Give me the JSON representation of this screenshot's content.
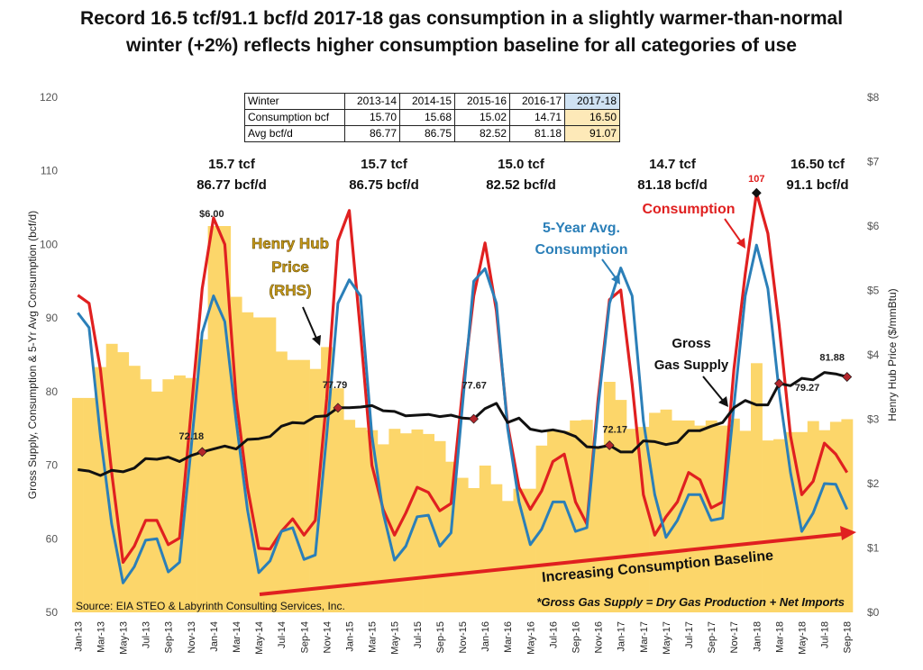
{
  "title_lines": [
    "Record 16.5 tcf/91.1 bcf/d 2017-18 gas consumption in a slightly warmer-than-normal",
    "winter (+2%) reflects higher consumption baseline for all categories of use"
  ],
  "table": {
    "header": [
      "Winter",
      "2013-14",
      "2014-15",
      "2015-16",
      "2016-17",
      "2017-18"
    ],
    "rows": [
      [
        "Consumption bcf",
        "15.70",
        "15.68",
        "15.02",
        "14.71",
        "16.50"
      ],
      [
        "Avg bcf/d",
        "86.77",
        "86.75",
        "82.52",
        "81.18",
        "91.07"
      ]
    ]
  },
  "chart_data": {
    "type": "line",
    "title": "Record 16.5 tcf/91.1 bcf/d 2017-18 gas consumption in a slightly warmer-than-normal winter (+2%) reflects higher consumption baseline for all categories of use",
    "x": [
      "Jan-13",
      "Feb-13",
      "Mar-13",
      "Apr-13",
      "May-13",
      "Jun-13",
      "Jul-13",
      "Aug-13",
      "Sep-13",
      "Oct-13",
      "Nov-13",
      "Dec-13",
      "Jan-14",
      "Feb-14",
      "Mar-14",
      "Apr-14",
      "May-14",
      "Jun-14",
      "Jul-14",
      "Aug-14",
      "Sep-14",
      "Oct-14",
      "Nov-14",
      "Dec-14",
      "Jan-15",
      "Feb-15",
      "Mar-15",
      "Apr-15",
      "May-15",
      "Jun-15",
      "Jul-15",
      "Aug-15",
      "Sep-15",
      "Oct-15",
      "Nov-15",
      "Dec-15",
      "Jan-16",
      "Feb-16",
      "Mar-16",
      "Apr-16",
      "May-16",
      "Jun-16",
      "Jul-16",
      "Aug-16",
      "Sep-16",
      "Oct-16",
      "Nov-16",
      "Dec-16",
      "Jan-17",
      "Feb-17",
      "Mar-17",
      "Apr-17",
      "May-17",
      "Jun-17",
      "Jul-17",
      "Aug-17",
      "Sep-17",
      "Oct-17",
      "Nov-17",
      "Dec-17",
      "Jan-18",
      "Feb-18",
      "Mar-18",
      "Apr-18",
      "May-18",
      "Jun-18",
      "Jul-18",
      "Aug-18",
      "Sep-18"
    ],
    "tick_labels": [
      "Jan-13",
      "Mar-13",
      "May-13",
      "Jul-13",
      "Sep-13",
      "Nov-13",
      "Jan-14",
      "Mar-14",
      "May-14",
      "Jul-14",
      "Sep-14",
      "Nov-14",
      "Jan-15",
      "Mar-15",
      "May-15",
      "Jul-15",
      "Sep-15",
      "Nov-15",
      "Jan-16",
      "Mar-16",
      "May-16",
      "Jul-16",
      "Sep-16",
      "Nov-16",
      "Jan-17",
      "Mar-17",
      "May-17",
      "Jul-17",
      "Sep-17",
      "Nov-17",
      "Jan-18",
      "Mar-18",
      "May-18",
      "Jul-18",
      "Sep-18"
    ],
    "ylabel": "Gross Supply, Consumption & 5-Yr Avg Consumption (bcf/d)",
    "ylabel_right": "Henry Hub Price ($/mmBtu)",
    "ylim": [
      50,
      120
    ],
    "ylim_right": [
      0,
      8
    ],
    "yticks": [
      "50",
      "60",
      "70",
      "80",
      "90",
      "100",
      "110",
      "120"
    ],
    "yticks_right": [
      "$0",
      "$1",
      "$2",
      "$3",
      "$4",
      "$5",
      "$6",
      "$7",
      "$8"
    ],
    "grid": false,
    "series": [
      {
        "name": "Henry Hub Price (RHS)",
        "kind": "bar",
        "axis": "right",
        "color": "#fcd66a",
        "values": [
          3.33,
          3.33,
          3.81,
          4.17,
          4.04,
          3.83,
          3.62,
          3.43,
          3.62,
          3.68,
          3.64,
          4.24,
          6.0,
          6.0,
          4.9,
          4.66,
          4.58,
          4.58,
          4.05,
          3.92,
          3.92,
          3.78,
          4.12,
          3.48,
          2.99,
          2.87,
          2.83,
          2.61,
          2.85,
          2.78,
          2.84,
          2.77,
          2.66,
          2.34,
          2.09,
          1.93,
          2.28,
          1.99,
          1.73,
          1.92,
          1.92,
          2.59,
          2.82,
          2.82,
          2.98,
          2.99,
          2.55,
          3.58,
          3.3,
          2.85,
          2.88,
          3.1,
          3.15,
          2.98,
          2.98,
          2.9,
          2.98,
          2.9,
          3.01,
          2.82,
          3.87,
          2.67,
          2.69,
          2.8,
          2.8,
          2.97,
          2.83,
          2.96,
          3.0
        ]
      },
      {
        "name": "Consumption",
        "kind": "line",
        "axis": "left",
        "color": "#e02020",
        "values": [
          93.1,
          92.0,
          83.0,
          69.0,
          56.8,
          59.0,
          62.5,
          62.5,
          59.2,
          60.1,
          77.0,
          94.0,
          103.6,
          100.0,
          79.0,
          67.0,
          58.7,
          58.6,
          61.0,
          62.7,
          60.5,
          62.5,
          79.0,
          100.5,
          104.6,
          88.0,
          70.0,
          64.0,
          60.5,
          63.5,
          67.0,
          66.3,
          63.8,
          64.8,
          80.0,
          93.0,
          100.2,
          91.0,
          75.5,
          67.0,
          64.0,
          66.5,
          70.5,
          71.5,
          65.0,
          62.0,
          79.0,
          92.5,
          93.8,
          81.0,
          66.0,
          60.5,
          63.0,
          65.0,
          69.0,
          68.0,
          64.2,
          65.0,
          83.0,
          96.0,
          107.0,
          101.5,
          89.0,
          74.0,
          66.0,
          67.8,
          73.0,
          71.5,
          69.0
        ]
      },
      {
        "name": "5-Year Avg. Consumption",
        "kind": "line",
        "axis": "left",
        "color": "#2b7fb8",
        "values": [
          90.7,
          88.7,
          74.0,
          62.0,
          54.0,
          56.2,
          59.8,
          60.0,
          55.5,
          56.8,
          72.0,
          88.0,
          93.0,
          89.5,
          76.0,
          64.0,
          55.4,
          57.0,
          61.0,
          61.5,
          57.2,
          57.8,
          74.0,
          92.0,
          95.2,
          93.0,
          74.0,
          63.5,
          57.1,
          59.0,
          63.0,
          63.2,
          59.0,
          60.8,
          78.0,
          95.0,
          96.7,
          92.0,
          75.0,
          65.0,
          59.2,
          61.3,
          65.0,
          65.0,
          61.0,
          61.5,
          78.0,
          92.0,
          96.8,
          93.0,
          76.0,
          66.0,
          60.2,
          62.5,
          66.0,
          66.0,
          62.5,
          62.8,
          78.0,
          93.0,
          99.9,
          94.0,
          80.0,
          69.0,
          61.0,
          63.5,
          67.5,
          67.4,
          64.0
        ]
      },
      {
        "name": "Gross Gas Supply",
        "kind": "line",
        "axis": "left",
        "color": "#111111",
        "values": [
          69.4,
          69.2,
          68.6,
          69.3,
          69.1,
          69.6,
          70.9,
          70.8,
          71.1,
          70.5,
          71.3,
          71.8,
          72.2,
          72.6,
          72.2,
          73.5,
          73.6,
          73.9,
          75.3,
          75.8,
          75.7,
          76.6,
          76.7,
          77.8,
          77.8,
          77.9,
          78.1,
          77.4,
          77.3,
          76.7,
          76.8,
          76.9,
          76.6,
          76.8,
          76.4,
          76.3,
          77.7,
          78.4,
          75.8,
          76.4,
          74.9,
          74.6,
          74.8,
          74.5,
          73.9,
          72.5,
          72.4,
          72.7,
          71.8,
          71.8,
          73.3,
          73.2,
          72.8,
          73.1,
          74.7,
          74.7,
          75.3,
          75.8,
          77.8,
          78.8,
          78.2,
          78.2,
          81.1,
          80.8,
          81.8,
          81.6,
          82.6,
          82.4,
          82.0
        ]
      }
    ],
    "point_labels": [
      "$6.00",
      "72.18",
      "77.79",
      "77.67",
      "72.17",
      "79.27",
      "81.88",
      "107"
    ],
    "annotations": {
      "winters": [
        {
          "tcf": "15.7 tcf",
          "bcfd": "86.77 bcf/d"
        },
        {
          "tcf": "15.7 tcf",
          "bcfd": "86.75 bcf/d"
        },
        {
          "tcf": "15.0 tcf",
          "bcfd": "82.52 bcf/d"
        },
        {
          "tcf": "14.7 tcf",
          "bcfd": "81.18 bcf/d"
        },
        {
          "tcf": "16.50 tcf",
          "bcfd": "91.1 bcf/d"
        }
      ],
      "henry_hub": [
        "Henry Hub",
        "Price",
        "(RHS)"
      ],
      "five_year": [
        "5-Year Avg.",
        "Consumption"
      ],
      "consumption": "Consumption",
      "gross_supply": [
        "Gross",
        "Gas Supply"
      ],
      "baseline": "Increasing Consumption Baseline",
      "source": "Source: EIA STEO & Labyrinth Consulting Services, Inc.",
      "footnote": "*Gross Gas Supply = Dry Gas Production + Net Imports"
    },
    "colors": {
      "bars": "#fcd66a",
      "consumption": "#e02020",
      "five_year": "#2b7fb8",
      "gross": "#111111",
      "arrow": "#e02020",
      "henry_text": "#c79a1a"
    }
  }
}
